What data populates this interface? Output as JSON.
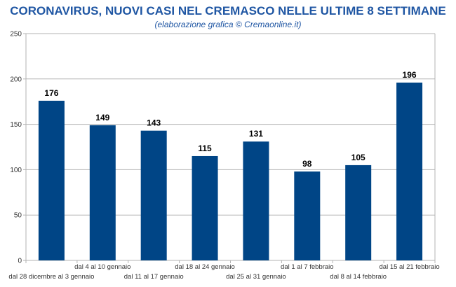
{
  "header": {
    "title": "CORONAVIRUS, NUOVI CASI NEL CREMASCO NELLE ULTIME 8 SETTIMANE",
    "subtitle": "(elaborazione grafica © Cremaonline.it)"
  },
  "colors": {
    "bar": "#004586",
    "title": "#1f56a3",
    "grid": "#b3b3b3",
    "axis": "#b3b3b3"
  },
  "chart_data": {
    "type": "bar",
    "title": "CORONAVIRUS, NUOVI CASI NEL CREMASCO NELLE ULTIME 8 SETTIMANE",
    "subtitle": "(elaborazione grafica © Cremaonline.it)",
    "xlabel": "",
    "ylabel": "",
    "ylim": [
      0,
      250
    ],
    "yticks": [
      0,
      50,
      100,
      150,
      200,
      250
    ],
    "grid": true,
    "categories": [
      "dal 28 dicembre al 3 gennaio",
      "dal 4 al 10 gennaio",
      "dal 11 al 17 gennaio",
      "dal 18 al 24 gennaio",
      "dal 25 al 31 gennaio",
      "dal 1 al 7 febbraio",
      "dal 8 al 14 febbraio",
      "dal 15 al 21 febbraio"
    ],
    "values": [
      176,
      149,
      143,
      115,
      131,
      98,
      105,
      196
    ]
  }
}
